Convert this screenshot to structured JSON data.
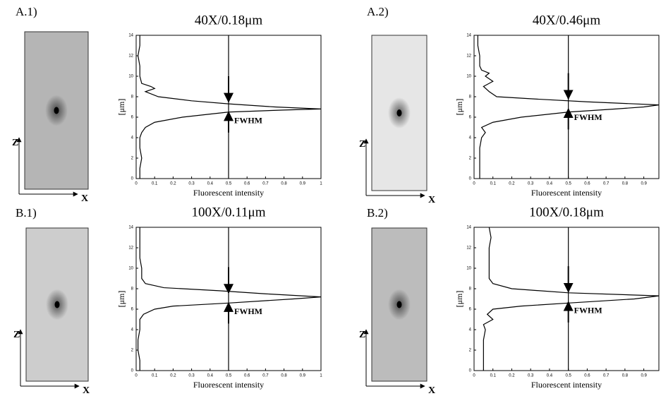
{
  "chart_data": [
    {
      "type": "line",
      "orientation": "horizontal",
      "panel_label": "A.1)",
      "title": "40X/0.18μm",
      "xlabel": "Fluorescent intensity",
      "ylabel": "[μm]",
      "annotation": "FWHM",
      "image_axes": {
        "vertical": "Z",
        "horizontal": "X"
      },
      "xlim": [
        0,
        1
      ],
      "xticks": [
        0,
        0.1,
        0.2,
        0.3,
        0.4,
        0.5,
        0.6,
        0.7,
        0.8,
        0.9,
        1
      ],
      "ylim": [
        0,
        14
      ],
      "yticks": [
        0,
        2,
        4,
        6,
        8,
        10,
        12,
        14
      ],
      "half_max": 0.5,
      "fwhm": [
        6.5,
        7.5
      ],
      "color": "#000000",
      "positions": [
        0,
        1,
        2,
        3,
        4,
        4.5,
        5,
        5.5,
        6,
        6.3,
        6.5,
        6.7,
        6.8,
        7,
        7.3,
        7.6,
        8,
        8.5,
        8.8,
        9,
        9.3,
        10,
        11,
        12,
        13,
        14
      ],
      "series": [
        {
          "values": [
            0.02,
            0.02,
            0.03,
            0.02,
            0.02,
            0.03,
            0.05,
            0.1,
            0.25,
            0.4,
            0.5,
            0.8,
            1.0,
            0.75,
            0.5,
            0.3,
            0.12,
            0.05,
            0.1,
            0.08,
            0.03,
            0.02,
            0.02,
            0.01,
            0.02,
            0.02
          ]
        }
      ]
    },
    {
      "type": "line",
      "orientation": "horizontal",
      "panel_label": "A.2)",
      "title": "40X/0.46μm",
      "xlabel": "Fluorescent intensity",
      "ylabel": "[μm]",
      "annotation": "FWHM",
      "image_axes": {
        "vertical": "Z",
        "horizontal": "X"
      },
      "xlim": [
        0,
        0.98
      ],
      "xticks": [
        0,
        0.1,
        0.2,
        0.3,
        0.4,
        0.5,
        0.6,
        0.7,
        0.8,
        0.9
      ],
      "ylim": [
        0,
        14
      ],
      "yticks": [
        0,
        2,
        4,
        6,
        8,
        10,
        12,
        14
      ],
      "half_max": 0.5,
      "fwhm": [
        6.8,
        7.8
      ],
      "color": "#000000",
      "positions": [
        0,
        1,
        2,
        3,
        4,
        4.5,
        5,
        5.5,
        6,
        6.5,
        6.8,
        7,
        7.2,
        7.5,
        7.8,
        8,
        8.5,
        9,
        9.5,
        10,
        10.3,
        10.6,
        11,
        12,
        13,
        14
      ],
      "series": [
        {
          "values": [
            0.03,
            0.03,
            0.03,
            0.03,
            0.04,
            0.06,
            0.04,
            0.1,
            0.25,
            0.5,
            0.75,
            0.9,
            0.98,
            0.6,
            0.3,
            0.12,
            0.08,
            0.05,
            0.1,
            0.06,
            0.08,
            0.04,
            0.03,
            0.03,
            0.02,
            0.02
          ]
        }
      ]
    },
    {
      "type": "line",
      "orientation": "horizontal",
      "panel_label": "B.1)",
      "title": "100X/0.11μm",
      "xlabel": "Fluorescent intensity",
      "ylabel": "[μm]",
      "annotation": "FWHM",
      "image_axes": {
        "vertical": "Z",
        "horizontal": "X"
      },
      "xlim": [
        0,
        1
      ],
      "xticks": [
        0,
        0.1,
        0.2,
        0.3,
        0.4,
        0.5,
        0.6,
        0.7,
        0.8,
        0.9,
        1
      ],
      "ylim": [
        0,
        14
      ],
      "yticks": [
        0,
        2,
        4,
        6,
        8,
        10,
        12,
        14
      ],
      "half_max": 0.5,
      "fwhm": [
        6.6,
        7.6
      ],
      "color": "#000000",
      "positions": [
        0,
        1,
        2,
        3,
        4,
        5,
        5.5,
        6,
        6.3,
        6.6,
        7,
        7.2,
        7.5,
        7.8,
        8.1,
        8.5,
        9,
        10,
        11,
        12,
        13,
        14
      ],
      "series": [
        {
          "values": [
            0.02,
            0.02,
            0.01,
            0.01,
            0.02,
            0.02,
            0.04,
            0.1,
            0.2,
            0.5,
            0.85,
            1.0,
            0.7,
            0.45,
            0.15,
            0.05,
            0.03,
            0.03,
            0.02,
            0.02,
            0.02,
            0.02
          ]
        }
      ]
    },
    {
      "type": "line",
      "orientation": "horizontal",
      "panel_label": "B.2)",
      "title": "100X/0.18μm",
      "xlabel": "Fluorescent intensity",
      "ylabel": "[μm]",
      "annotation": "FWHM",
      "image_axes": {
        "vertical": "Z",
        "horizontal": "X"
      },
      "xlim": [
        0,
        0.98
      ],
      "xticks": [
        0,
        0.1,
        0.2,
        0.3,
        0.4,
        0.5,
        0.6,
        0.7,
        0.8,
        0.9
      ],
      "ylim": [
        0,
        14
      ],
      "yticks": [
        0,
        2,
        4,
        6,
        8,
        10,
        12,
        14
      ],
      "half_max": 0.5,
      "fwhm": [
        6.7,
        7.7
      ],
      "color": "#000000",
      "positions": [
        0,
        1,
        2,
        3,
        4,
        4.5,
        5,
        5.5,
        6,
        6.3,
        6.6,
        7,
        7.3,
        7.6,
        8,
        8.5,
        9,
        10,
        11,
        12,
        13,
        14
      ],
      "series": [
        {
          "values": [
            0.05,
            0.05,
            0.05,
            0.05,
            0.06,
            0.05,
            0.1,
            0.07,
            0.1,
            0.25,
            0.5,
            0.85,
            0.98,
            0.5,
            0.2,
            0.1,
            0.08,
            0.08,
            0.08,
            0.08,
            0.09,
            0.08
          ]
        }
      ]
    }
  ]
}
